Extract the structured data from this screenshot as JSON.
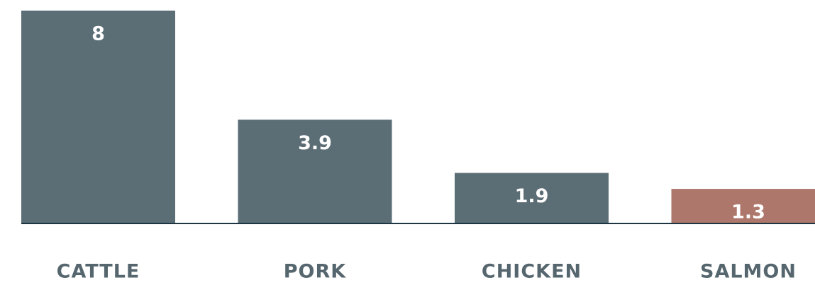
{
  "chart_data": {
    "type": "bar",
    "categories": [
      "CATTLE",
      "PORK",
      "CHICKEN",
      "SALMON"
    ],
    "values": [
      8,
      3.9,
      1.9,
      1.3
    ],
    "colors": [
      "#5b6d75",
      "#5b6d75",
      "#5b6d75",
      "#ae776b"
    ]
  }
}
